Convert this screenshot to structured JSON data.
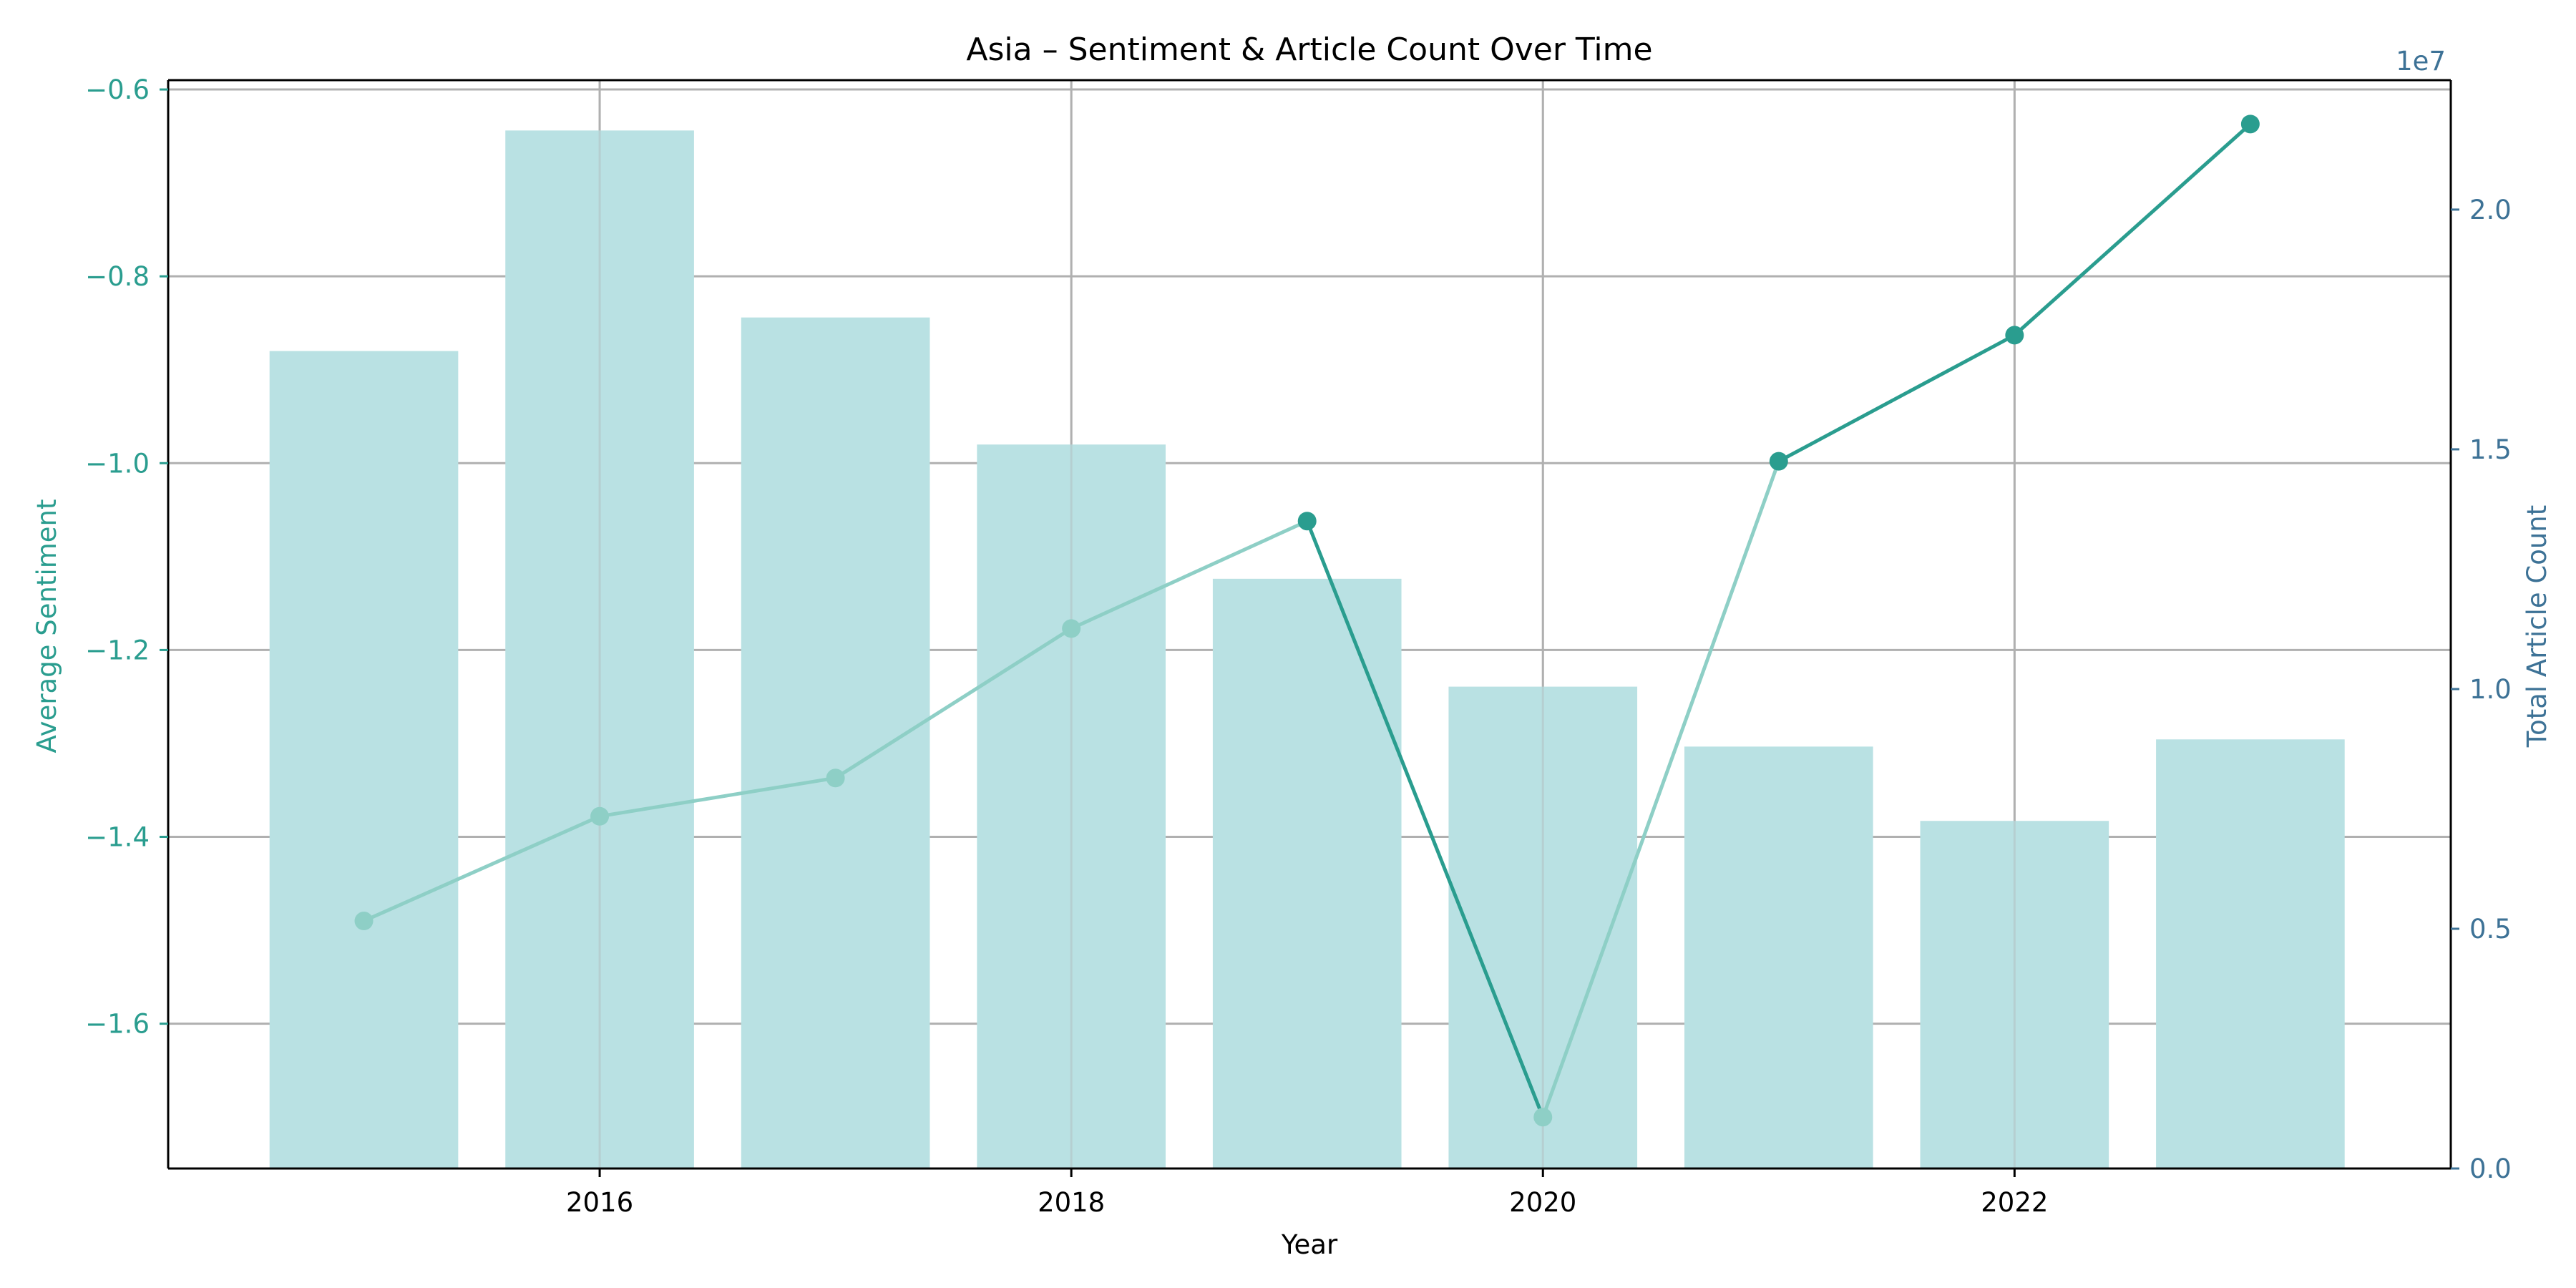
{
  "chart_data": {
    "type": "bar+line",
    "title": "Asia – Sentiment & Article Count Over Time",
    "xlabel": "Year",
    "ylabel_left": "Average Sentiment",
    "ylabel_right": "Total Article Count",
    "right_axis_multiplier": "1e7",
    "x": [
      2015,
      2016,
      2017,
      2018,
      2019,
      2020,
      2021,
      2022,
      2023
    ],
    "x_ticks": [
      2016,
      2018,
      2020,
      2022
    ],
    "x_tick_labels": [
      "2016",
      "2018",
      "2020",
      "2022"
    ],
    "xlim": [
      2014.17,
      2023.85
    ],
    "ylim_left": [
      -1.755,
      -0.59
    ],
    "ylim_right": [
      0,
      22700000
    ],
    "y_ticks_left": [
      -1.6,
      -1.4,
      -1.2,
      -1.0,
      -0.8,
      -0.6
    ],
    "y_tick_labels_left": [
      "−1.6",
      "−1.4",
      "−1.2",
      "−1.0",
      "−0.8",
      "−0.6"
    ],
    "y_ticks_right": [
      0,
      5000000,
      10000000,
      15000000,
      20000000
    ],
    "y_tick_labels_right": [
      "0.0",
      "0.5",
      "1.0",
      "1.5",
      "2.0"
    ],
    "grid": true,
    "series": [
      {
        "name": "Total Article Count",
        "type": "bar",
        "axis": "right",
        "values": [
          17050000,
          21650000,
          17750000,
          15100000,
          12300000,
          10050000,
          8800000,
          7250000,
          8950000
        ]
      },
      {
        "name": "Average Sentiment",
        "type": "line",
        "axis": "left",
        "values": [
          -1.49,
          -1.378,
          -1.337,
          -1.177,
          -1.062,
          -1.7,
          -0.998,
          -0.863,
          -0.637
        ]
      }
    ],
    "colors": {
      "bar": "#b9e1e3",
      "line": "#2a9d8f",
      "line_faded": "#8ecfc6",
      "left_axis": "#2a9d8f",
      "right_axis": "#3d7296",
      "grid": "#b0b0b0",
      "text": "#000000"
    }
  }
}
